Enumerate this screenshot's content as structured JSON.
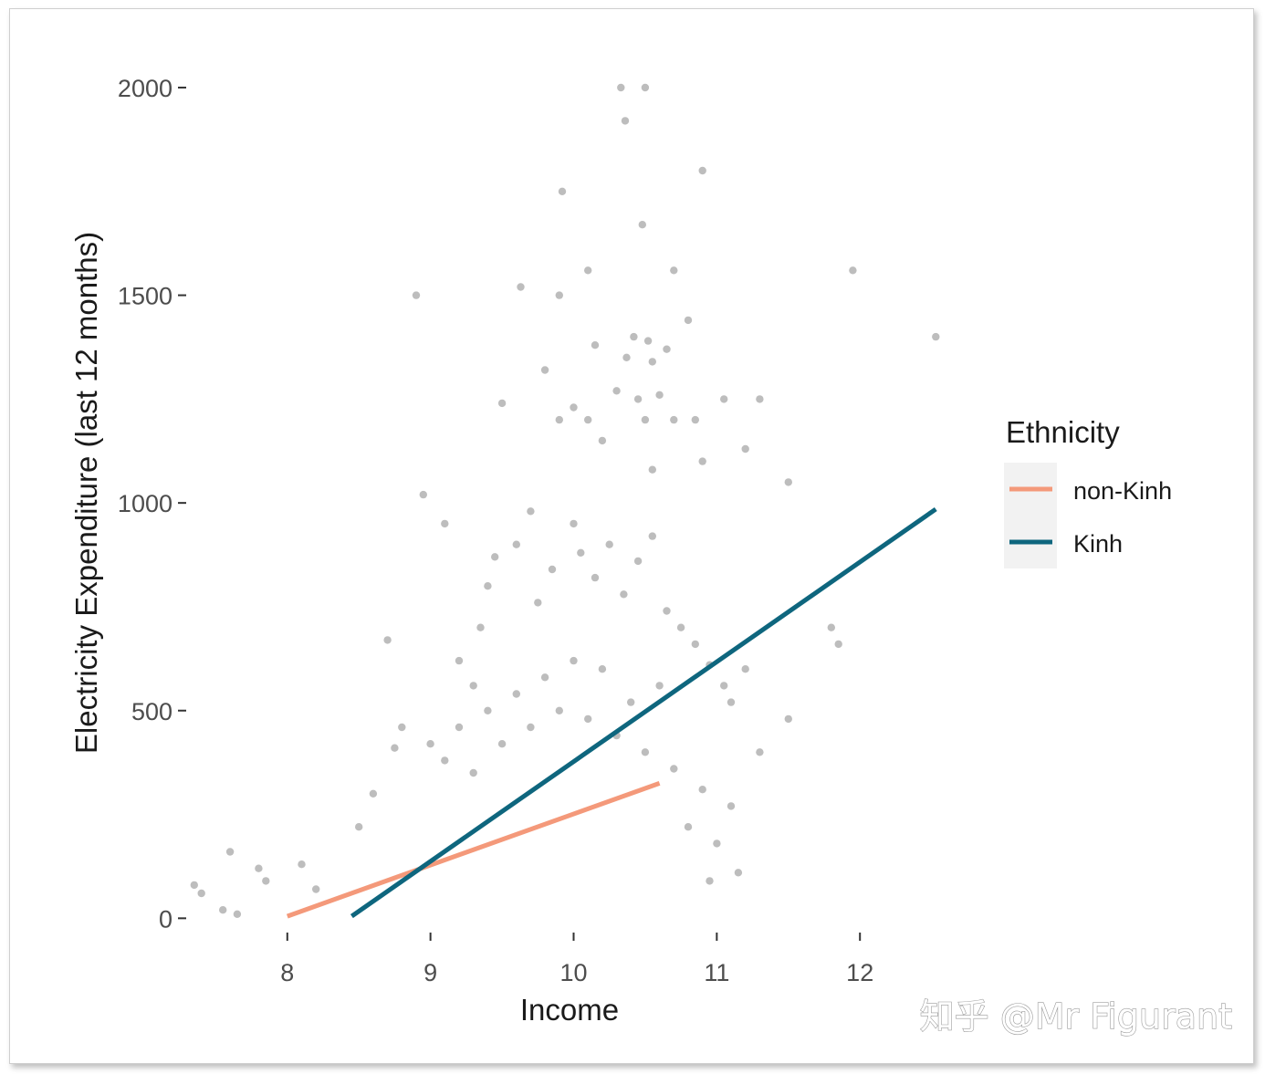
{
  "chart_data": {
    "type": "scatter",
    "xlabel": "Income",
    "ylabel": "Electricity Expenditure (last 12 months)",
    "xlim": [
      7.3,
      12.7
    ],
    "ylim": [
      -30,
      2090
    ],
    "x_ticks": [
      8,
      9,
      10,
      11,
      12
    ],
    "y_ticks": [
      0,
      500,
      1000,
      1500,
      2000
    ],
    "grid": false,
    "legend": {
      "title": "Ethnicity",
      "position": "right",
      "entries": [
        {
          "label": "non-Kinh",
          "color": "#F4997A"
        },
        {
          "label": "Kinh",
          "color": "#0E667E"
        }
      ]
    },
    "points_color": "#BDBDBD",
    "points": [
      [
        10.33,
        2000
      ],
      [
        10.5,
        2000
      ],
      [
        10.36,
        1920
      ],
      [
        10.9,
        1800
      ],
      [
        9.92,
        1750
      ],
      [
        10.48,
        1670
      ],
      [
        10.1,
        1560
      ],
      [
        10.7,
        1560
      ],
      [
        11.95,
        1560
      ],
      [
        9.63,
        1520
      ],
      [
        8.9,
        1500
      ],
      [
        9.9,
        1500
      ],
      [
        10.8,
        1440
      ],
      [
        10.42,
        1400
      ],
      [
        10.52,
        1390
      ],
      [
        10.65,
        1370
      ],
      [
        10.15,
        1380
      ],
      [
        12.53,
        1400
      ],
      [
        10.37,
        1350
      ],
      [
        10.55,
        1340
      ],
      [
        9.8,
        1320
      ],
      [
        10.3,
        1270
      ],
      [
        10.6,
        1260
      ],
      [
        10.45,
        1250
      ],
      [
        11.3,
        1250
      ],
      [
        11.05,
        1250
      ],
      [
        10.0,
        1230
      ],
      [
        9.5,
        1240
      ],
      [
        10.1,
        1200
      ],
      [
        10.7,
        1200
      ],
      [
        10.85,
        1200
      ],
      [
        10.5,
        1200
      ],
      [
        9.9,
        1200
      ],
      [
        11.5,
        1050
      ],
      [
        11.2,
        1130
      ],
      [
        10.9,
        1100
      ],
      [
        10.55,
        1080
      ],
      [
        10.2,
        1150
      ],
      [
        8.95,
        1020
      ],
      [
        9.1,
        950
      ],
      [
        11.8,
        700
      ],
      [
        11.85,
        660
      ],
      [
        11.5,
        480
      ],
      [
        11.3,
        400
      ],
      [
        11.15,
        110
      ],
      [
        10.95,
        90
      ],
      [
        7.35,
        80
      ],
      [
        7.4,
        60
      ],
      [
        7.55,
        20
      ],
      [
        7.65,
        10
      ],
      [
        7.6,
        160
      ],
      [
        7.8,
        120
      ],
      [
        7.85,
        90
      ],
      [
        8.1,
        130
      ],
      [
        8.2,
        70
      ],
      [
        8.5,
        220
      ],
      [
        8.6,
        300
      ],
      [
        8.75,
        410
      ],
      [
        8.8,
        460
      ],
      [
        9.2,
        620
      ],
      [
        9.3,
        560
      ],
      [
        9.35,
        700
      ],
      [
        9.4,
        800
      ],
      [
        9.45,
        870
      ],
      [
        8.7,
        670
      ],
      [
        9.6,
        900
      ],
      [
        9.7,
        980
      ],
      [
        9.75,
        760
      ],
      [
        9.85,
        840
      ],
      [
        10.0,
        950
      ],
      [
        10.05,
        880
      ],
      [
        10.15,
        820
      ],
      [
        10.25,
        900
      ],
      [
        10.35,
        780
      ],
      [
        10.45,
        860
      ],
      [
        10.55,
        920
      ],
      [
        10.65,
        740
      ],
      [
        10.75,
        700
      ],
      [
        10.85,
        660
      ],
      [
        10.95,
        610
      ],
      [
        11.05,
        560
      ],
      [
        11.1,
        520
      ],
      [
        11.2,
        600
      ],
      [
        10.6,
        560
      ],
      [
        10.4,
        520
      ],
      [
        10.2,
        600
      ],
      [
        10.0,
        620
      ],
      [
        9.8,
        580
      ],
      [
        9.6,
        540
      ],
      [
        9.4,
        500
      ],
      [
        9.2,
        460
      ],
      [
        9.0,
        420
      ],
      [
        9.1,
        380
      ],
      [
        9.3,
        350
      ],
      [
        9.5,
        420
      ],
      [
        9.7,
        460
      ],
      [
        9.9,
        500
      ],
      [
        10.1,
        480
      ],
      [
        10.3,
        440
      ],
      [
        10.5,
        400
      ],
      [
        10.7,
        360
      ],
      [
        10.9,
        310
      ],
      [
        11.1,
        270
      ],
      [
        11.0,
        180
      ],
      [
        10.8,
        220
      ]
    ],
    "series": [
      {
        "name": "non-Kinh",
        "type": "line",
        "color": "#F4997A",
        "x": [
          8.0,
          10.6
        ],
        "y": [
          5,
          325
        ]
      },
      {
        "name": "Kinh",
        "type": "line",
        "color": "#0E667E",
        "x": [
          8.45,
          12.53
        ],
        "y": [
          5,
          985
        ]
      }
    ]
  },
  "watermark": "知乎 @Mr Figurant"
}
